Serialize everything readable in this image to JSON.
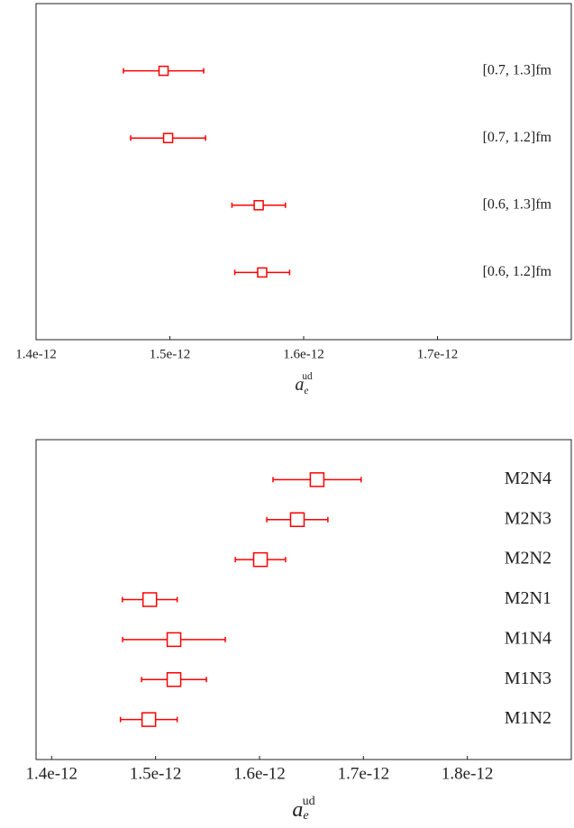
{
  "chart_data": [
    {
      "type": "errorbar",
      "categories": [
        "[0.7, 1.3]fm",
        "[0.7, 1.2]fm",
        "[0.6, 1.3]fm",
        "[0.6, 1.2]fm"
      ],
      "values": [
        1.4953e-12,
        1.4987e-12,
        1.5664e-12,
        1.569e-12
      ],
      "errors": [
        3e-14,
        2.8e-14,
        2e-14,
        2.05e-14
      ],
      "color": "#ff0000",
      "xlim": [
        1.4e-12,
        1.8e-12
      ],
      "xticks": [
        {
          "value": 1.4e-12,
          "label": "1.4e-12"
        },
        {
          "value": 1.5e-12,
          "label": "1.5e-12"
        },
        {
          "value": 1.6e-12,
          "label": "1.6e-12"
        },
        {
          "value": 1.7e-12,
          "label": "1.7e-12"
        }
      ],
      "xlabel": {
        "base": "a",
        "sub": "e",
        "sup": "ud"
      }
    },
    {
      "type": "errorbar",
      "categories": [
        "M2N4",
        "M2N3",
        "M2N2",
        "M2N1",
        "M1N4",
        "M1N3",
        "M1N2"
      ],
      "values": [
        1.6554e-12,
        1.6364e-12,
        1.6009e-12,
        1.4944e-12,
        1.5177e-12,
        1.5177e-12,
        1.4935e-12
      ],
      "errors": [
        4.24e-14,
        2.94e-14,
        2.42e-14,
        2.64e-14,
        4.94e-14,
        3.12e-14,
        2.73e-14
      ],
      "color": "#ff0000",
      "xlim": [
        1.385e-12,
        1.9e-12
      ],
      "xticks": [
        {
          "value": 1.4e-12,
          "label": "1.4e-12"
        },
        {
          "value": 1.5e-12,
          "label": "1.5e-12"
        },
        {
          "value": 1.6e-12,
          "label": "1.6e-12"
        },
        {
          "value": 1.7e-12,
          "label": "1.7e-12"
        },
        {
          "value": 1.8e-12,
          "label": "1.8e-12"
        }
      ],
      "xlabel": {
        "base": "a",
        "sub": "e",
        "sup": "ud"
      }
    }
  ]
}
